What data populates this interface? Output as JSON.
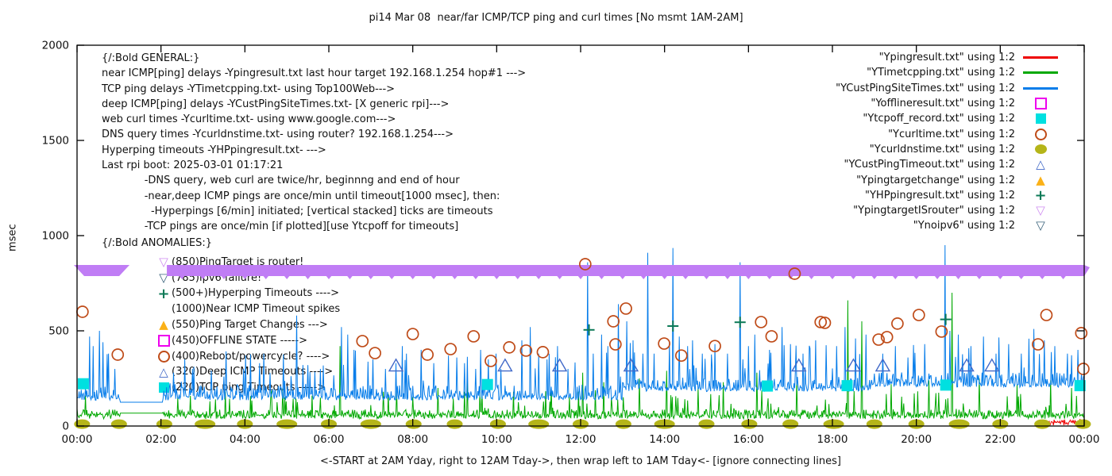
{
  "title": "pi14 Mar 08  near/far ICMP/TCP ping and curl times [No msmt 1AM-2AM]",
  "ylabel": "msec",
  "x_caption": "<-START at 2AM Yday, right to 12AM Tday->, then wrap left to 1AM Tday<- [ignore connecting lines]",
  "general": {
    "lines": [
      "{/:Bold GENERAL:}",
      "near ICMP[ping] delays -Ypingresult.txt last hour target 192.168.1.254 hop#1 --->",
      "TCP ping delays -YTimetcpping.txt- using Top100Web--->",
      "deep ICMP[ping] delays -YCustPingSiteTimes.txt- [X generic rpi]--->",
      "web curl times -Ycurltime.txt- using www.google.com--->",
      "DNS query times -Ycurldnstime.txt- using router? 192.168.1.254--->",
      "Hyperping timeouts -YHPpingresult.txt- --->",
      "Last rpi boot: 2025-03-01 01:17:21",
      "             -DNS query, web curl are twice/hr, beginnng and end of hour",
      "             -near,deep ICMP pings are once/min until timeout[1000 msec], then:",
      "               -Hyperpings [6/min] initiated; [vertical stacked] ticks are timeouts",
      "             -TCP pings are once/min [if plotted][use Ytcpoff for timeouts]"
    ]
  },
  "anomalies": {
    "header": "{/:Bold ANOMALIES:}",
    "lines": [
      {
        "marker": "tridown-open",
        "color": "#cf8ef0",
        "text": "(850)PingTarget is router!"
      },
      {
        "marker": "tridown-open",
        "color": "#3c647c",
        "text": "(785)ipv6 failure!"
      },
      {
        "marker": "plus",
        "color": "#0d7a57",
        "text": "(500+)Hyperping Timeouts ---->"
      },
      {
        "marker": "none",
        "color": "",
        "text": "(1000)Near ICMP Timeout spikes"
      },
      {
        "marker": "tri-filled",
        "color": "#fbb117",
        "text": "(550)Ping Target Changes --->"
      },
      {
        "marker": "square-open",
        "color": "#ee00ee",
        "text": "(450)OFFLINE STATE ----->"
      },
      {
        "marker": "circle-open",
        "color": "#bf4b18",
        "text": "(400)Reboot/powercycle? ---->"
      },
      {
        "marker": "tri-open",
        "color": "#4169c8",
        "text": "(320)Deep ICMP Timeouts ---->"
      },
      {
        "marker": "square-filled",
        "color": "#00e0e0",
        "text": "(220)TCP ping Timeouts ----->"
      }
    ]
  },
  "legend": {
    "entries": [
      {
        "label": "\"Ypingresult.txt\" using 1:2",
        "glyph": "line",
        "color": "#ee0000"
      },
      {
        "label": "\"YTimetcpping.txt\" using 1:2",
        "glyph": "line",
        "color": "#00a800"
      },
      {
        "label": "\"YCustPingSiteTimes.txt\" using 1:2",
        "glyph": "line",
        "color": "#077dea"
      },
      {
        "label": "\"Yofflineresult.txt\" using 1:2",
        "glyph": "square-open",
        "color": "#ee00ee"
      },
      {
        "label": "\"Ytcpoff_record.txt\" using 1:2",
        "glyph": "square-filled",
        "color": "#00e0e0"
      },
      {
        "label": "\"Ycurltime.txt\" using 1:2",
        "glyph": "circle-open",
        "color": "#bf4b18"
      },
      {
        "label": "\"Ycurldnstime.txt\" using 1:2",
        "glyph": "circle-filled",
        "color": "#b5b519"
      },
      {
        "label": "\"YCustPingTimeout.txt\" using 1:2",
        "glyph": "tri-open",
        "color": "#4169c8"
      },
      {
        "label": "\"Ypingtargetchange\" using 1:2",
        "glyph": "tri-filled",
        "color": "#fbb117"
      },
      {
        "label": "\"YHPpingresult.txt\" using 1:2",
        "glyph": "plus",
        "color": "#0d7a57"
      },
      {
        "label": "\"YpingtargetISrouter\" using 1:2",
        "glyph": "tridown-open",
        "color": "#cf8ef0"
      },
      {
        "label": "\"Ynoipv6\" using 1:2",
        "glyph": "tridown-open",
        "color": "#3c647c"
      }
    ]
  },
  "chart_data": {
    "type": "line",
    "xlabel": "<-START at 2AM Yday, right to 12AM Tday->, then wrap left to 1AM Tday<- [ignore connecting lines]",
    "ylabel": "msec",
    "xlim": [
      0,
      24
    ],
    "ylim": [
      0,
      2000
    ],
    "y_ticks": [
      0,
      500,
      1000,
      1500,
      2000
    ],
    "x_ticks": {
      "hours": [
        0,
        2,
        4,
        6,
        8,
        10,
        12,
        14,
        16,
        18,
        20,
        22,
        24
      ],
      "labels": [
        "00:00",
        "02:00",
        "04:00",
        "06:00",
        "08:00",
        "10:00",
        "12:00",
        "14:00",
        "16:00",
        "18:00",
        "20:00",
        "22:00",
        "00:00"
      ]
    },
    "grid": false,
    "legend_position": "top-right",
    "no_measurement_window_hours": [
      1.02,
      2.04
    ],
    "series": [
      {
        "name": "Ypingresult.txt",
        "type": "noisy-line",
        "color": "#ee0000",
        "seed": 3,
        "segments": [
          [
            23,
            24,
            17
          ]
        ],
        "noise_amp": 12,
        "spikes": []
      },
      {
        "name": "YTimetcpping.txt",
        "type": "noisy-line",
        "color": "#00a800",
        "seed": 7,
        "segments": [
          [
            0,
            1.02,
            52
          ],
          [
            1.02,
            2.04,
            68
          ],
          [
            2.04,
            24,
            52
          ]
        ],
        "noise_amp": 62,
        "spikes": [
          [
            0.2,
            160
          ],
          [
            2.4,
            150
          ],
          [
            3.3,
            140
          ],
          [
            4.9,
            200
          ],
          [
            5.6,
            160
          ],
          [
            6.27,
            420
          ],
          [
            7.3,
            180
          ],
          [
            8.6,
            200
          ],
          [
            9.3,
            240
          ],
          [
            10.4,
            180
          ],
          [
            11.3,
            200
          ],
          [
            12.05,
            280
          ],
          [
            12.55,
            230
          ],
          [
            13.4,
            250
          ],
          [
            14.05,
            290
          ],
          [
            14.8,
            200
          ],
          [
            15.4,
            230
          ],
          [
            16.2,
            280
          ],
          [
            17.15,
            240
          ],
          [
            18.36,
            660
          ],
          [
            18.7,
            550
          ],
          [
            19.4,
            220
          ],
          [
            20.3,
            240
          ],
          [
            20.85,
            700
          ],
          [
            21.5,
            250
          ],
          [
            22.4,
            220
          ],
          [
            23.2,
            240
          ],
          [
            23.7,
            200
          ]
        ]
      },
      {
        "name": "YCustPingSiteTimes.txt",
        "type": "noisy-line",
        "color": "#077dea",
        "seed": 11,
        "segments": [
          [
            0,
            1.02,
            148
          ],
          [
            1.02,
            2.04,
            125
          ],
          [
            2.04,
            13,
            150
          ],
          [
            13,
            19,
            195
          ],
          [
            19,
            24,
            218
          ]
        ],
        "noise_amp": 115,
        "spikes": [
          [
            0.3,
            470
          ],
          [
            0.38,
            420
          ],
          [
            0.53,
            500
          ],
          [
            0.62,
            440
          ],
          [
            0.75,
            380
          ],
          [
            0.9,
            300
          ],
          [
            2.3,
            280
          ],
          [
            2.56,
            350
          ],
          [
            2.75,
            300
          ],
          [
            3.2,
            290
          ],
          [
            3.5,
            260
          ],
          [
            3.96,
            300
          ],
          [
            4.35,
            330
          ],
          [
            4.6,
            280
          ],
          [
            5.24,
            580
          ],
          [
            5.5,
            320
          ],
          [
            5.8,
            300
          ],
          [
            6.3,
            520
          ],
          [
            6.45,
            480
          ],
          [
            6.6,
            400
          ],
          [
            7.05,
            350
          ],
          [
            7.35,
            300
          ],
          [
            7.6,
            330
          ],
          [
            7.75,
            420
          ],
          [
            7.85,
            380
          ],
          [
            8.2,
            400
          ],
          [
            8.5,
            330
          ],
          [
            8.85,
            370
          ],
          [
            9.05,
            360
          ],
          [
            9.5,
            300
          ],
          [
            9.8,
            350
          ],
          [
            10.1,
            300
          ],
          [
            10.6,
            450
          ],
          [
            10.8,
            520
          ],
          [
            11.0,
            380
          ],
          [
            11.2,
            350
          ],
          [
            11.45,
            420
          ],
          [
            11.7,
            300
          ],
          [
            12.17,
            860
          ],
          [
            12.3,
            380
          ],
          [
            12.5,
            480
          ],
          [
            12.65,
            420
          ],
          [
            12.9,
            640
          ],
          [
            13.1,
            550
          ],
          [
            13.25,
            450
          ],
          [
            13.6,
            910
          ],
          [
            13.75,
            380
          ],
          [
            14.2,
            935
          ],
          [
            14.35,
            470
          ],
          [
            14.55,
            420
          ],
          [
            14.67,
            450
          ],
          [
            14.9,
            380
          ],
          [
            15.2,
            430
          ],
          [
            15.5,
            380
          ],
          [
            15.8,
            860
          ],
          [
            16.0,
            420
          ],
          [
            16.15,
            480
          ],
          [
            16.5,
            400
          ],
          [
            16.8,
            520
          ],
          [
            17.0,
            430
          ],
          [
            17.3,
            380
          ],
          [
            17.6,
            450
          ],
          [
            18.1,
            420
          ],
          [
            18.3,
            520
          ],
          [
            18.55,
            460
          ],
          [
            18.8,
            480
          ],
          [
            19.2,
            380
          ],
          [
            19.5,
            420
          ],
          [
            19.8,
            360
          ],
          [
            20.2,
            430
          ],
          [
            20.68,
            950
          ],
          [
            20.8,
            500
          ],
          [
            21.0,
            480
          ],
          [
            21.3,
            420
          ],
          [
            21.6,
            470
          ],
          [
            21.9,
            380
          ],
          [
            22.2,
            430
          ],
          [
            22.5,
            380
          ],
          [
            22.8,
            510
          ],
          [
            23.05,
            450
          ],
          [
            23.3,
            420
          ],
          [
            23.6,
            380
          ],
          [
            23.85,
            400
          ]
        ]
      },
      {
        "name": "Yofflineresult.txt",
        "type": "scatter",
        "marker": "square-open",
        "color": "#ee00ee",
        "points": []
      },
      {
        "name": "Ytcpoff_record.txt",
        "type": "scatter",
        "marker": "square-filled",
        "color": "#00e0e0",
        "points": [
          [
            0.15,
            222
          ],
          [
            9.78,
            218
          ],
          [
            16.45,
            210
          ],
          [
            18.35,
            212
          ],
          [
            20.7,
            215
          ],
          [
            23.9,
            212
          ]
        ]
      },
      {
        "name": "Ycurltime.txt",
        "type": "scatter",
        "marker": "circle-open",
        "color": "#bf4b18",
        "points": [
          [
            0.13,
            600
          ],
          [
            0.97,
            375
          ],
          [
            6.8,
            446
          ],
          [
            7.1,
            383
          ],
          [
            8.0,
            483
          ],
          [
            8.35,
            375
          ],
          [
            8.9,
            404
          ],
          [
            9.45,
            471
          ],
          [
            9.86,
            342
          ],
          [
            10.3,
            413
          ],
          [
            10.7,
            396
          ],
          [
            11.1,
            388
          ],
          [
            12.11,
            850
          ],
          [
            12.78,
            550
          ],
          [
            12.83,
            429
          ],
          [
            13.08,
            617
          ],
          [
            13.99,
            433
          ],
          [
            14.4,
            370
          ],
          [
            15.2,
            420
          ],
          [
            16.3,
            546
          ],
          [
            16.55,
            471
          ],
          [
            17.1,
            800
          ],
          [
            17.72,
            546
          ],
          [
            17.82,
            542
          ],
          [
            19.1,
            454
          ],
          [
            19.3,
            467
          ],
          [
            19.55,
            538
          ],
          [
            20.06,
            583
          ],
          [
            20.6,
            496
          ],
          [
            22.9,
            429
          ],
          [
            23.1,
            583
          ],
          [
            23.93,
            488
          ],
          [
            23.98,
            300
          ]
        ]
      },
      {
        "name": "Ycurldnstime.txt",
        "type": "scatter",
        "marker": "ellipse-filled",
        "color": "#b5b519",
        "points": [
          [
            0.12,
            10
          ],
          [
            1,
            10
          ],
          [
            2.08,
            10
          ],
          [
            3.05,
            10,
            1
          ],
          [
            4,
            10
          ],
          [
            5,
            10,
            1
          ],
          [
            6,
            10
          ],
          [
            7,
            10,
            1
          ],
          [
            8.02,
            10
          ],
          [
            9,
            10
          ],
          [
            10.03,
            10
          ],
          [
            11,
            10,
            1
          ],
          [
            12,
            10
          ],
          [
            13.02,
            10
          ],
          [
            14,
            10,
            1
          ],
          [
            15,
            10
          ],
          [
            16.02,
            10
          ],
          [
            17,
            10
          ],
          [
            18.03,
            10,
            1
          ],
          [
            19,
            10
          ],
          [
            20,
            10
          ],
          [
            21.02,
            10,
            1
          ],
          [
            22,
            10
          ],
          [
            23,
            10
          ],
          [
            23.97,
            10
          ]
        ]
      },
      {
        "name": "YCustPingTimeout.txt",
        "type": "scatter",
        "marker": "tri-open",
        "color": "#4169c8",
        "points": [
          [
            7.6,
            320
          ],
          [
            10.2,
            320
          ],
          [
            11.5,
            320
          ],
          [
            13.2,
            320
          ],
          [
            17.2,
            320
          ],
          [
            18.5,
            320
          ],
          [
            19.2,
            320
          ],
          [
            21.2,
            320
          ],
          [
            21.8,
            320
          ]
        ]
      },
      {
        "name": "Ypingtargetchange",
        "type": "scatter",
        "marker": "tri-filled",
        "color": "#fbb117",
        "points": []
      },
      {
        "name": "YHPpingresult.txt",
        "type": "scatter",
        "marker": "plus",
        "color": "#0d7a57",
        "points": [
          [
            12.2,
            505
          ],
          [
            14.2,
            525
          ],
          [
            15.8,
            545
          ],
          [
            20.7,
            560
          ]
        ]
      },
      {
        "name": "YpingtargetISrouter",
        "type": "band",
        "color": "#c07df5",
        "value": 850,
        "segments": [
          [
            0,
            1.25
          ],
          [
            2.14,
            24
          ]
        ]
      },
      {
        "name": "Ynoipv6",
        "type": "scatter",
        "marker": "tridown-open",
        "color": "#3c647c",
        "points": []
      }
    ]
  },
  "colors": {
    "axis": "#000000",
    "text": "#111111",
    "band": "#c07df5"
  }
}
